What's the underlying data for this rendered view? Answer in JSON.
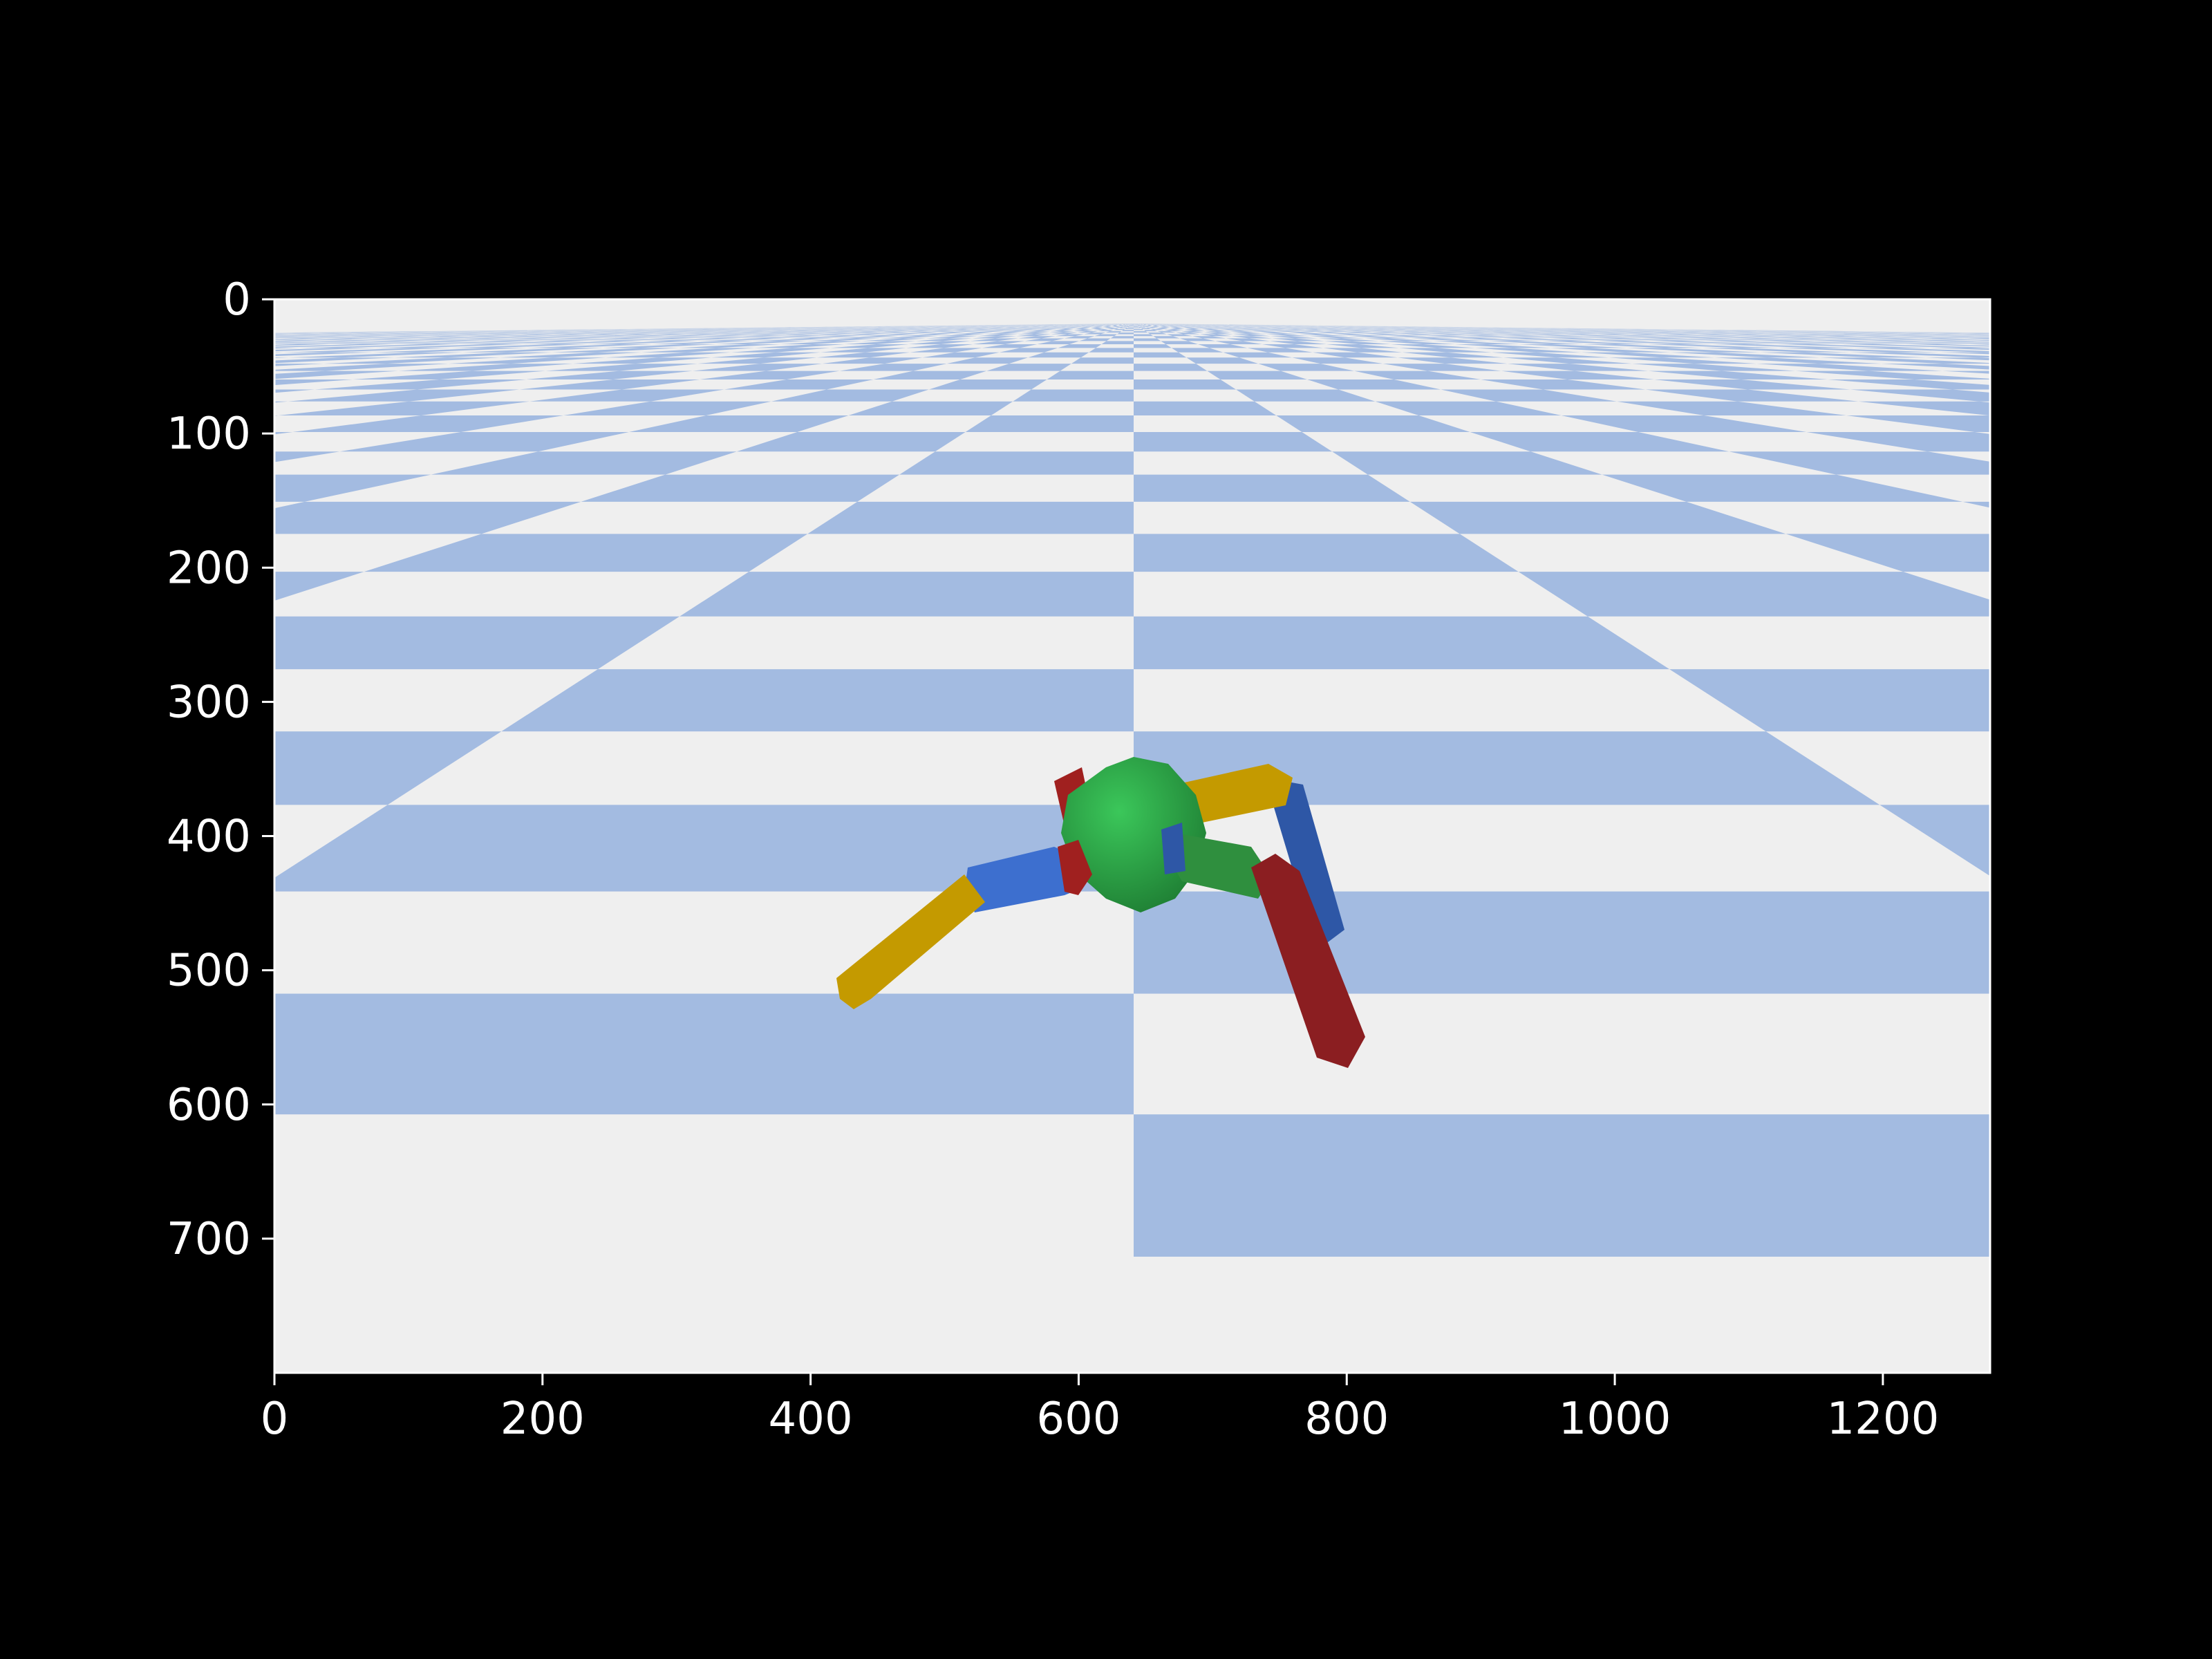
{
  "figure": {
    "background_color": "#000000",
    "axis_color": "#ffffff",
    "tick_label_color": "#ffffff"
  },
  "axes": {
    "x_ticks": [
      "0",
      "200",
      "400",
      "600",
      "800",
      "1000",
      "1200"
    ],
    "y_ticks": [
      "0",
      "100",
      "200",
      "300",
      "400",
      "500",
      "600",
      "700"
    ],
    "x_range": [
      0,
      1280
    ],
    "y_range": [
      0,
      800
    ],
    "y_inverted": true
  },
  "scene": {
    "description_type": "3d-render",
    "floor_colors": {
      "checker_light": "#efefef",
      "checker_blue": "#a3bbe1"
    },
    "robot_colors": {
      "torso": "#2ea548",
      "yellow_segment": "#c9a000",
      "blue_segment": "#3461b8",
      "red_segment": "#8b1e21",
      "green_segment": "#2f8f3e"
    }
  }
}
